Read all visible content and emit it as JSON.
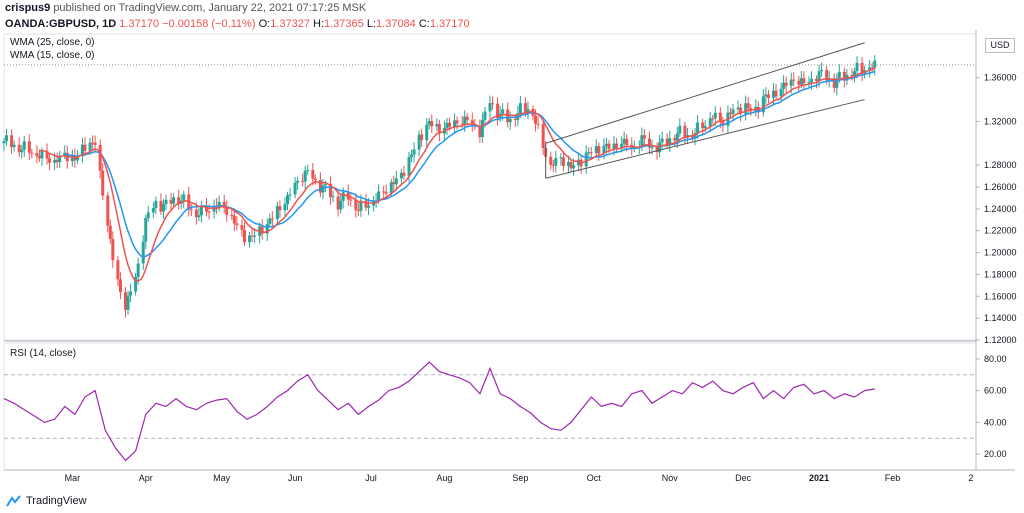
{
  "header": {
    "publisher": "crispus9",
    "published_text": "published on TradingView.com, January 22, 2021 07:17:25 MSK",
    "symbol": "OANDA:GBPUSD, 1D",
    "last": "1.37170",
    "change": "−0.00158 (−0.11%)",
    "o_label": "O:",
    "o": "1.37327",
    "h_label": "H:",
    "h": "1.37365",
    "l_label": "L:",
    "l": "1.37084",
    "c_label": "C:",
    "c": "1.37170"
  },
  "studies": {
    "wma25": "WMA (25, close, 0)",
    "wma15": "WMA (15, close, 0)",
    "rsi": "RSI (14, close)"
  },
  "currency_badge": "USD",
  "brand": "TradingView",
  "colors": {
    "up": "#26a69a",
    "down": "#ef5350",
    "wma15": "#ef5350",
    "wma25": "#2196f3",
    "rsi": "#9c27b0",
    "channel": "#555555"
  },
  "chart_data": [
    {
      "type": "candlestick",
      "title": "",
      "ylim": [
        1.12,
        1.4
      ],
      "y_ticks": [
        "1.36000",
        "1.32000",
        "1.28000",
        "1.26000",
        "1.24000",
        "1.22000",
        "1.20000",
        "1.18000",
        "1.16000",
        "1.14000",
        "1.12000"
      ],
      "y_tick_values": [
        1.36,
        1.32,
        1.28,
        1.26,
        1.24,
        1.22,
        1.2,
        1.18,
        1.16,
        1.14,
        1.12
      ],
      "last_price": 1.3717,
      "x_ticks": [
        "Mar",
        "Apr",
        "May",
        "Jun",
        "Jul",
        "Aug",
        "Sep",
        "Oct",
        "Nov",
        "Dec",
        "2021",
        "Feb",
        "2"
      ],
      "x_tick_days": [
        27,
        56,
        86,
        115,
        145,
        174,
        204,
        233,
        263,
        292,
        322,
        351,
        382
      ],
      "close_series_days": [
        0,
        4,
        8,
        12,
        16,
        20,
        24,
        28,
        32,
        36,
        40,
        44,
        48,
        52,
        56,
        60,
        64,
        68,
        72,
        76,
        80,
        84,
        88,
        92,
        96,
        100,
        104,
        108,
        112,
        116,
        120,
        124,
        128,
        132,
        136,
        140,
        144,
        148,
        152,
        156,
        160,
        164,
        168,
        172,
        176,
        180,
        184,
        188,
        192,
        196,
        200,
        204,
        208,
        212,
        216,
        220,
        224,
        228,
        232,
        236,
        240,
        244,
        248,
        252,
        256,
        260,
        264,
        268,
        272,
        276,
        280,
        284,
        288,
        292,
        296,
        300,
        304,
        308,
        312,
        316,
        320,
        324,
        328,
        332,
        336,
        340,
        344
      ],
      "close_series": [
        1.302,
        1.298,
        1.296,
        1.292,
        1.288,
        1.285,
        1.29,
        1.286,
        1.298,
        1.3,
        1.24,
        1.178,
        1.15,
        1.175,
        1.228,
        1.245,
        1.242,
        1.252,
        1.245,
        1.236,
        1.24,
        1.245,
        1.24,
        1.225,
        1.212,
        1.218,
        1.225,
        1.238,
        1.248,
        1.265,
        1.272,
        1.262,
        1.255,
        1.245,
        1.252,
        1.24,
        1.246,
        1.252,
        1.262,
        1.268,
        1.285,
        1.305,
        1.318,
        1.312,
        1.315,
        1.32,
        1.318,
        1.31,
        1.338,
        1.325,
        1.322,
        1.33,
        1.335,
        1.305,
        1.28,
        1.288,
        1.278,
        1.285,
        1.292,
        1.296,
        1.295,
        1.3,
        1.294,
        1.302,
        1.295,
        1.298,
        1.306,
        1.31,
        1.308,
        1.318,
        1.325,
        1.322,
        1.33,
        1.335,
        1.328,
        1.34,
        1.345,
        1.35,
        1.358,
        1.352,
        1.36,
        1.362,
        1.355,
        1.362,
        1.366,
        1.37,
        1.371
      ],
      "channel": {
        "upper": [
          {
            "day": 214,
            "price": 1.3
          },
          {
            "day": 340,
            "price": 1.392
          }
        ],
        "lower": [
          {
            "day": 214,
            "price": 1.268
          },
          {
            "day": 340,
            "price": 1.34
          }
        ]
      }
    },
    {
      "type": "line",
      "title": "",
      "ylim": [
        10,
        90
      ],
      "y_ticks": [
        "80.00",
        "60.00",
        "40.00",
        "20.00"
      ],
      "y_tick_values": [
        80,
        60,
        40,
        20
      ],
      "levels": [
        70,
        30
      ],
      "x_days": [
        0,
        4,
        8,
        12,
        16,
        20,
        24,
        28,
        32,
        36,
        40,
        44,
        48,
        52,
        56,
        60,
        64,
        68,
        72,
        76,
        80,
        84,
        88,
        92,
        96,
        100,
        104,
        108,
        112,
        116,
        120,
        124,
        128,
        132,
        136,
        140,
        144,
        148,
        152,
        156,
        160,
        164,
        168,
        172,
        176,
        180,
        184,
        188,
        192,
        196,
        200,
        204,
        208,
        212,
        216,
        220,
        224,
        228,
        232,
        236,
        240,
        244,
        248,
        252,
        256,
        260,
        264,
        268,
        272,
        276,
        280,
        284,
        288,
        292,
        296,
        300,
        304,
        308,
        312,
        316,
        320,
        324,
        328,
        332,
        336,
        340,
        344
      ],
      "values": [
        55,
        52,
        48,
        44,
        40,
        42,
        50,
        45,
        56,
        60,
        35,
        24,
        16,
        22,
        45,
        52,
        50,
        55,
        50,
        48,
        52,
        54,
        55,
        47,
        42,
        45,
        50,
        56,
        60,
        66,
        70,
        60,
        54,
        48,
        52,
        45,
        50,
        54,
        60,
        62,
        66,
        72,
        78,
        72,
        70,
        68,
        65,
        58,
        74,
        58,
        55,
        50,
        46,
        40,
        36,
        35,
        40,
        48,
        56,
        50,
        52,
        50,
        58,
        60,
        52,
        56,
        60,
        58,
        65,
        62,
        66,
        60,
        58,
        62,
        65,
        55,
        60,
        55,
        62,
        64,
        58,
        60,
        55,
        58,
        56,
        60,
        61
      ]
    }
  ]
}
